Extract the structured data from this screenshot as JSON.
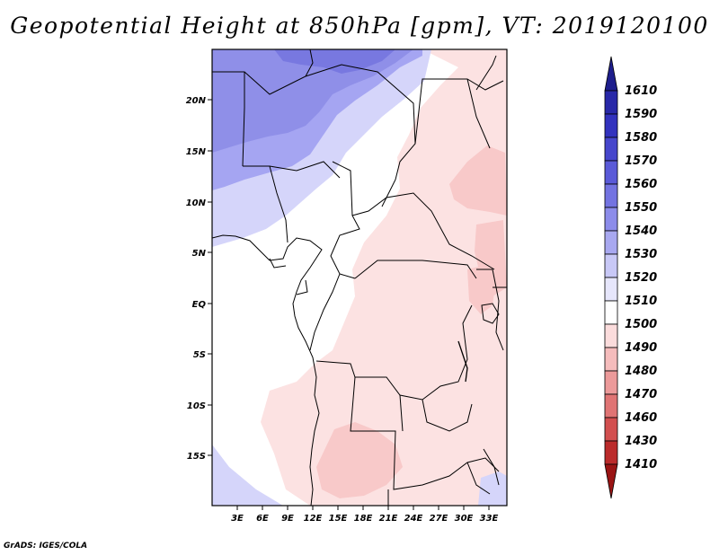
{
  "title": "Geopotential Height at 850hPa [gpm], VT: 2019120100",
  "footer": "GrADS: IGES/COLA",
  "latitude_labels": [
    "20N",
    "15N",
    "10N",
    "5N",
    "EQ",
    "5S",
    "10S",
    "15S"
  ],
  "longitude_labels": [
    "3E",
    "6E",
    "9E",
    "12E",
    "15E",
    "18E",
    "21E",
    "24E",
    "27E",
    "30E",
    "33E"
  ],
  "colorbar": {
    "levels": [
      "1610",
      "1590",
      "1580",
      "1570",
      "1560",
      "1550",
      "1540",
      "1530",
      "1520",
      "1510",
      "1500",
      "1490",
      "1480",
      "1470",
      "1460",
      "1430",
      "1410"
    ],
    "colors": [
      "#1e1e8c",
      "#2828a8",
      "#3232be",
      "#4646cc",
      "#5a5ad8",
      "#7373e1",
      "#8c8cea",
      "#a8a8f0",
      "#c8c8f6",
      "#e6e6fb",
      "#ffffff",
      "#fbdcdc",
      "#f5bcbc",
      "#ec9a9a",
      "#e07474",
      "#d24f4f",
      "#bb2b2b",
      "#9a1414"
    ]
  },
  "map_legend": {
    "shading_colors": {
      "1520_1530": "#a5a5f2",
      "1510_1520": "#d5d5fa",
      "1500_1510": "#ffffff",
      "1490_1500": "#fce2e2",
      "1480_1490": "#f8c9c9",
      "1530_1540": "#8f8fe8",
      "1540_1550": "#7878e0"
    }
  }
}
